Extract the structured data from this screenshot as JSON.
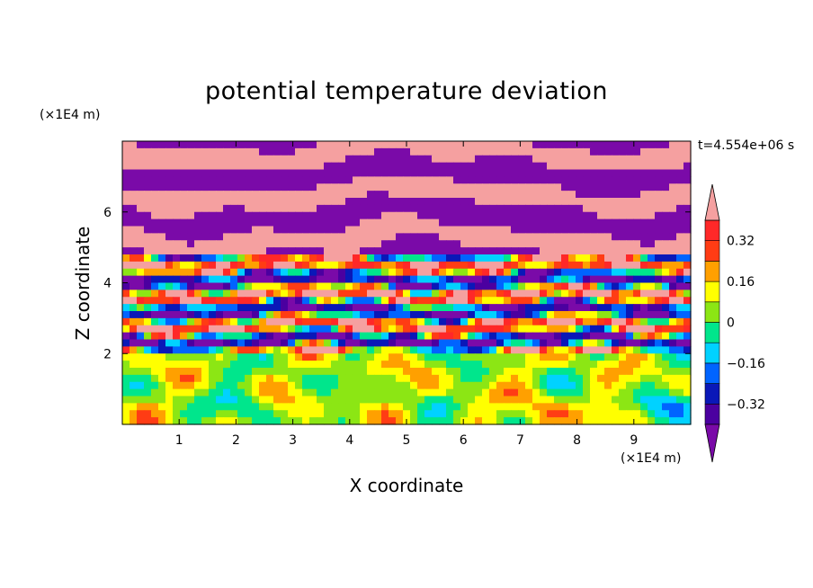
{
  "chart_data": {
    "type": "heatmap",
    "title": "potential temperature deviation",
    "xlabel": "X coordinate",
    "ylabel": "Z coordinate",
    "x_unit": "(×1E4 m)",
    "y_unit": "(×1E4 m)",
    "time_label": "t=4.554e+06 s",
    "xlim": [
      0,
      10
    ],
    "ylim": [
      0,
      8
    ],
    "xticks": [
      "1",
      "2",
      "3",
      "4",
      "5",
      "6",
      "7",
      "8",
      "9"
    ],
    "yticks": [
      "2",
      "4",
      "6"
    ],
    "colorbar": {
      "labels": [
        "0.32",
        "0.16",
        "0",
        "−0.16",
        "−0.32"
      ],
      "label_values": [
        0.32,
        0.16,
        0,
        -0.16,
        -0.32
      ],
      "levels": [
        -0.4,
        -0.32,
        -0.24,
        -0.16,
        -0.08,
        0,
        0.08,
        0.16,
        0.24,
        0.32,
        0.4
      ],
      "colors": [
        "#7a0aa8",
        "#4b00a0",
        "#0a18b8",
        "#0064ff",
        "#00d2ff",
        "#00e68c",
        "#8ce614",
        "#ffff00",
        "#ffa000",
        "#ff3c14",
        "#ff2828",
        "#f5a0a0"
      ],
      "extend": "both"
    },
    "description_values": {
      "upper_band_values": [
        -0.4,
        0.4
      ],
      "lower_band_range": [
        -0.32,
        0.24
      ]
    }
  }
}
